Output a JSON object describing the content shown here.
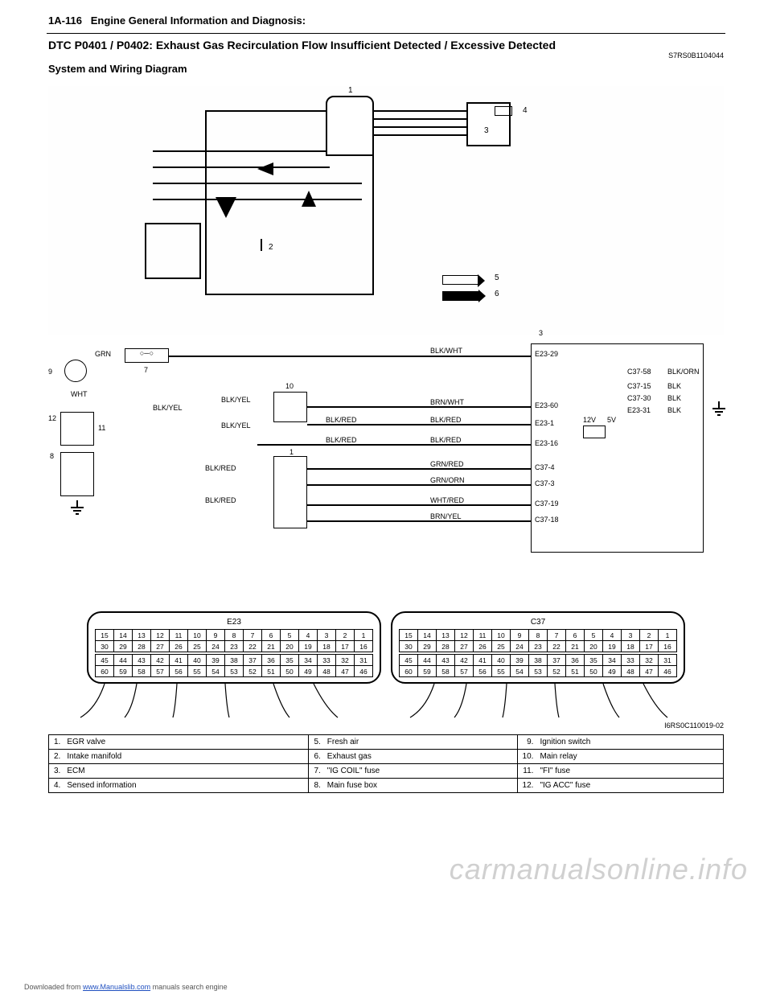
{
  "header": {
    "page_no": "1A-116",
    "section": "Engine General Information and Diagnosis:"
  },
  "title": "DTC P0401 / P0402: Exhaust Gas Recirculation Flow Insufficient Detected / Excessive Detected",
  "doc_id": "S7RS0B1104044",
  "subtitle": "System and Wiring Diagram",
  "mech_labels": {
    "l1": "1",
    "l2": "2",
    "l3": "3",
    "l4": "4",
    "l5": "5",
    "l6": "6"
  },
  "wiring": {
    "top_label": "3",
    "grn": "GRN",
    "wht": "WHT",
    "n7": "7",
    "n8": "8",
    "n9": "9",
    "n10": "10",
    "n11": "11",
    "n12": "12",
    "n1": "1",
    "blkwht": "BLK/WHT",
    "brnwht": "BRN/WHT",
    "blkyel": "BLK/YEL",
    "blkred": "BLK/RED",
    "grnred": "GRN/RED",
    "grnorn": "GRN/ORN",
    "whtred": "WHT/RED",
    "brnyel": "BRN/YEL",
    "blkorn": "BLK/ORN",
    "blk": "BLK",
    "e23_29": "E23-29",
    "e23_60": "E23-60",
    "e23_1": "E23-1",
    "e23_16": "E23-16",
    "c37_4": "C37-4",
    "c37_3": "C37-3",
    "c37_19": "C37-19",
    "c37_18": "C37-18",
    "c37_58": "C37-58",
    "c37_15": "C37-15",
    "c37_30": "C37-30",
    "e23_31": "E23-31",
    "v12": "12V",
    "v5": "5V"
  },
  "connectors": {
    "left_name": "E23",
    "right_name": "C37",
    "row1": [
      "15",
      "14",
      "13",
      "12",
      "11",
      "10",
      "9",
      "8",
      "7",
      "6",
      "5",
      "4",
      "3",
      "2",
      "1"
    ],
    "row2": [
      "30",
      "29",
      "28",
      "27",
      "26",
      "25",
      "24",
      "23",
      "22",
      "21",
      "20",
      "19",
      "18",
      "17",
      "16"
    ],
    "row3": [
      "45",
      "44",
      "43",
      "42",
      "41",
      "40",
      "39",
      "38",
      "37",
      "36",
      "35",
      "34",
      "33",
      "32",
      "31"
    ],
    "row4": [
      "60",
      "59",
      "58",
      "57",
      "56",
      "55",
      "54",
      "53",
      "52",
      "51",
      "50",
      "49",
      "48",
      "47",
      "46"
    ]
  },
  "legend": [
    {
      "n": "1.",
      "t": "EGR valve",
      "n2": "5.",
      "t2": "Fresh air",
      "n3": "9.",
      "t3": "Ignition switch"
    },
    {
      "n": "2.",
      "t": "Intake manifold",
      "n2": "6.",
      "t2": "Exhaust gas",
      "n3": "10.",
      "t3": "Main relay"
    },
    {
      "n": "3.",
      "t": "ECM",
      "n2": "7.",
      "t2": "\"IG COIL\" fuse",
      "n3": "11.",
      "t3": "\"FI\" fuse"
    },
    {
      "n": "4.",
      "t": "Sensed information",
      "n2": "8.",
      "t2": "Main fuse box",
      "n3": "12.",
      "t3": "\"IG ACC\" fuse"
    }
  ],
  "figure_id": "I6RS0C110019-02",
  "watermark": "carmanualsonline.info",
  "footer_pre": "Downloaded from ",
  "footer_link": "www.Manualslib.com",
  "footer_post": " manuals search engine"
}
